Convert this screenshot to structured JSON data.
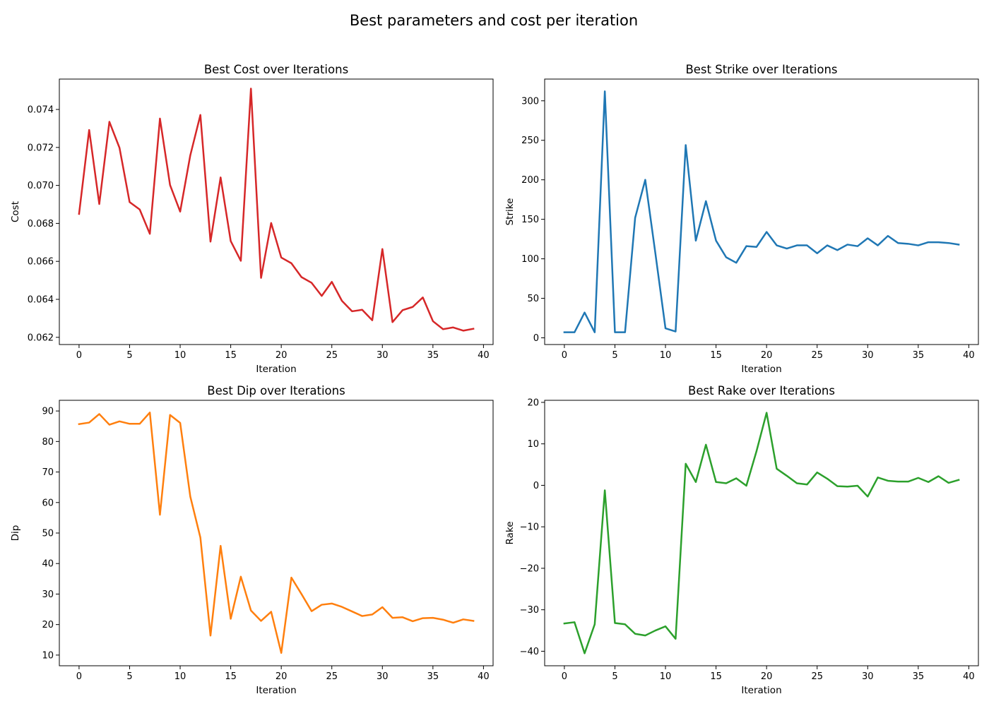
{
  "figure_title": "Best parameters and cost per iteration",
  "chart_data": [
    {
      "type": "line",
      "title": "Best Cost over Iterations",
      "xlabel": "Iteration",
      "ylabel": "Cost",
      "color": "#d62728",
      "xlim": [
        -1.95,
        40.95
      ],
      "ylim": [
        0.06162,
        0.0756
      ],
      "xticks": [
        0,
        5,
        10,
        15,
        20,
        25,
        30,
        35,
        40
      ],
      "xtick_labels": [
        "0",
        "5",
        "10",
        "15",
        "20",
        "25",
        "30",
        "35",
        "40"
      ],
      "yticks": [
        0.062,
        0.064,
        0.066,
        0.068,
        0.07,
        0.072,
        0.074
      ],
      "ytick_labels": [
        "0.062",
        "0.064",
        "0.066",
        "0.068",
        "0.070",
        "0.072",
        "0.074"
      ],
      "x": [
        0,
        1,
        2,
        3,
        4,
        5,
        6,
        7,
        8,
        9,
        10,
        11,
        12,
        13,
        14,
        15,
        16,
        17,
        18,
        19,
        20,
        21,
        22,
        23,
        24,
        25,
        26,
        27,
        28,
        29,
        30,
        31,
        32,
        33,
        34,
        35,
        36,
        37,
        38,
        39
      ],
      "values": [
        0.0685,
        0.07292,
        0.06902,
        0.07335,
        0.07198,
        0.06912,
        0.06873,
        0.06745,
        0.07352,
        0.07002,
        0.06862,
        0.07158,
        0.07371,
        0.06704,
        0.07042,
        0.06707,
        0.06603,
        0.0751,
        0.06513,
        0.06802,
        0.0662,
        0.0659,
        0.06517,
        0.06487,
        0.06418,
        0.06492,
        0.06392,
        0.06337,
        0.06345,
        0.0629,
        0.06665,
        0.0628,
        0.06343,
        0.0636,
        0.0641,
        0.06285,
        0.06243,
        0.06252,
        0.06235,
        0.06245
      ]
    },
    {
      "type": "line",
      "title": "Best Strike over Iterations",
      "xlabel": "Iteration",
      "ylabel": "Strike",
      "color": "#1f77b4",
      "xlim": [
        -1.95,
        40.95
      ],
      "ylim": [
        -8.5,
        327.5
      ],
      "xticks": [
        0,
        5,
        10,
        15,
        20,
        25,
        30,
        35,
        40
      ],
      "xtick_labels": [
        "0",
        "5",
        "10",
        "15",
        "20",
        "25",
        "30",
        "35",
        "40"
      ],
      "yticks": [
        0,
        50,
        100,
        150,
        200,
        250,
        300
      ],
      "ytick_labels": [
        "0",
        "50",
        "100",
        "150",
        "200",
        "250",
        "300"
      ],
      "x": [
        0,
        1,
        2,
        3,
        4,
        5,
        6,
        7,
        8,
        9,
        10,
        11,
        12,
        13,
        14,
        15,
        16,
        17,
        18,
        19,
        20,
        21,
        22,
        23,
        24,
        25,
        26,
        27,
        28,
        29,
        30,
        31,
        32,
        33,
        34,
        35,
        36,
        37,
        38,
        39
      ],
      "values": [
        7,
        7,
        32,
        7,
        312,
        7,
        7,
        152,
        200,
        107,
        12,
        8,
        244,
        123,
        173,
        123,
        102,
        95,
        116,
        115,
        134,
        117,
        113,
        117,
        117,
        107,
        117,
        111,
        118,
        116,
        126,
        117,
        129,
        120,
        119,
        117,
        121,
        121,
        120,
        118
      ]
    },
    {
      "type": "line",
      "title": "Best Dip over Iterations",
      "xlabel": "Iteration",
      "ylabel": "Dip",
      "color": "#ff7f0e",
      "xlim": [
        -1.95,
        40.95
      ],
      "ylim": [
        6.5,
        93.5
      ],
      "xticks": [
        0,
        5,
        10,
        15,
        20,
        25,
        30,
        35,
        40
      ],
      "xtick_labels": [
        "0",
        "5",
        "10",
        "15",
        "20",
        "25",
        "30",
        "35",
        "40"
      ],
      "yticks": [
        10,
        20,
        30,
        40,
        50,
        60,
        70,
        80,
        90
      ],
      "ytick_labels": [
        "10",
        "20",
        "30",
        "40",
        "50",
        "60",
        "70",
        "80",
        "90"
      ],
      "x": [
        0,
        1,
        2,
        3,
        4,
        5,
        6,
        7,
        8,
        9,
        10,
        11,
        12,
        13,
        14,
        15,
        16,
        17,
        18,
        19,
        20,
        21,
        22,
        23,
        24,
        25,
        26,
        27,
        28,
        29,
        30,
        31,
        32,
        33,
        34,
        35,
        36,
        37,
        38,
        39
      ],
      "values": [
        85.7,
        86.2,
        89.0,
        85.5,
        86.6,
        85.8,
        85.8,
        89.5,
        56.0,
        88.7,
        86.1,
        62.0,
        48.5,
        16.4,
        45.8,
        21.9,
        35.7,
        24.6,
        21.2,
        24.2,
        10.7,
        35.4,
        30.0,
        24.4,
        26.5,
        26.9,
        25.8,
        24.3,
        22.8,
        23.3,
        25.7,
        22.2,
        22.4,
        21.1,
        22.1,
        22.2,
        21.6,
        20.6,
        21.7,
        21.2
      ]
    },
    {
      "type": "line",
      "title": "Best Rake over Iterations",
      "xlabel": "Iteration",
      "ylabel": "Rake",
      "color": "#2ca02c",
      "xlim": [
        -1.95,
        40.95
      ],
      "ylim": [
        -43.5,
        20.5
      ],
      "xticks": [
        0,
        5,
        10,
        15,
        20,
        25,
        30,
        35,
        40
      ],
      "xtick_labels": [
        "0",
        "5",
        "10",
        "15",
        "20",
        "25",
        "30",
        "35",
        "40"
      ],
      "yticks": [
        -40,
        -30,
        -20,
        -10,
        0,
        10,
        20
      ],
      "ytick_labels": [
        "−40",
        "−30",
        "−20",
        "−10",
        "0",
        "10",
        "20"
      ],
      "x": [
        0,
        1,
        2,
        3,
        4,
        5,
        6,
        7,
        8,
        9,
        10,
        11,
        12,
        13,
        14,
        15,
        16,
        17,
        18,
        19,
        20,
        21,
        22,
        23,
        24,
        25,
        26,
        27,
        28,
        29,
        30,
        31,
        32,
        33,
        34,
        35,
        36,
        37,
        38,
        39
      ],
      "values": [
        -33.3,
        -33.0,
        -40.5,
        -33.5,
        -1.2,
        -33.2,
        -33.5,
        -35.8,
        -36.2,
        -35.0,
        -34.0,
        -37.0,
        5.2,
        0.8,
        9.8,
        0.8,
        0.5,
        1.7,
        -0.1,
        8.2,
        17.5,
        4.0,
        2.3,
        0.5,
        0.2,
        3.1,
        1.6,
        -0.2,
        -0.3,
        -0.1,
        -2.7,
        1.9,
        1.1,
        0.9,
        0.9,
        1.8,
        0.8,
        2.2,
        0.6,
        1.3
      ]
    }
  ]
}
